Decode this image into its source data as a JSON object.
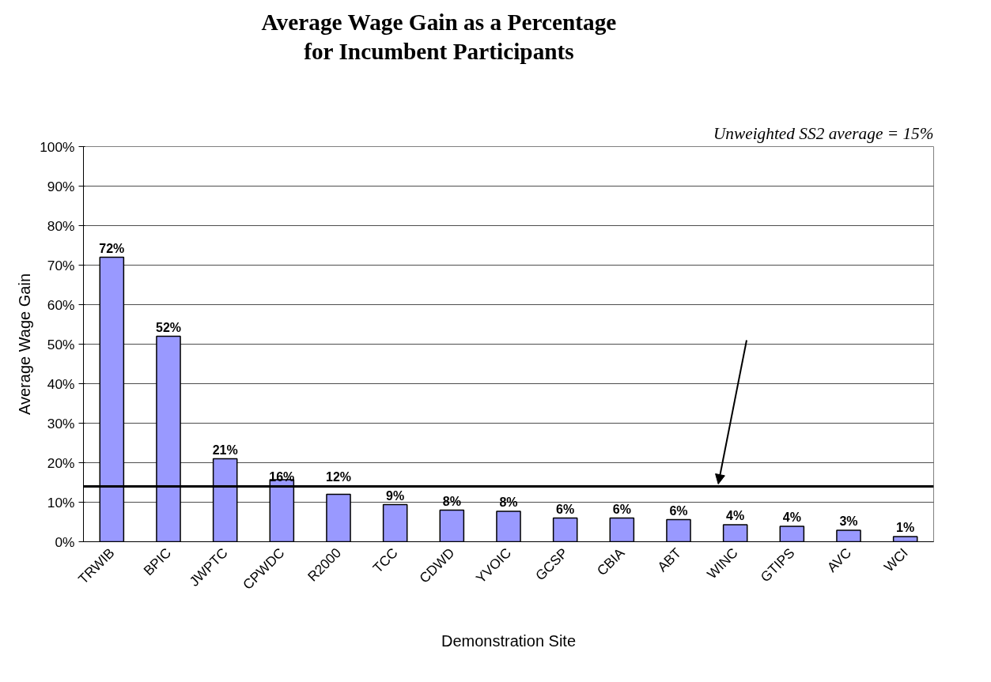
{
  "chart_data": {
    "type": "bar",
    "title": "Average Wage Gain as a Percentage\nfor Incumbent Participants",
    "xlabel": "Demonstration Site",
    "ylabel": "Average Wage Gain",
    "categories": [
      "TRWIB",
      "BPIC",
      "JWPTC",
      "CPWDC",
      "R2000",
      "TCC",
      "CDWD",
      "YVOIC",
      "GCSP",
      "CBIA",
      "ABT",
      "WINC",
      "GTIPS",
      "AVC",
      "WCI"
    ],
    "values": [
      72,
      52,
      21,
      15.7,
      12,
      9.4,
      8,
      7.7,
      6,
      6,
      5.6,
      4.3,
      3.9,
      2.9,
      1.3
    ],
    "value_labels": [
      "72%",
      "52%",
      "21%",
      "16%",
      "12%",
      "9%",
      "8%",
      "8%",
      "6%",
      "6%",
      "6%",
      "4%",
      "4%",
      "3%",
      "1%"
    ],
    "color": "#9999ff",
    "ylim": [
      0,
      100
    ],
    "yticks": [
      {
        "value": 0,
        "label": "0%"
      },
      {
        "value": 10,
        "label": "10%"
      },
      {
        "value": 20,
        "label": "20%"
      },
      {
        "value": 30,
        "label": "30%"
      },
      {
        "value": 40,
        "label": "40%"
      },
      {
        "value": 50,
        "label": "50%"
      },
      {
        "value": 60,
        "label": "60%"
      },
      {
        "value": 70,
        "label": "70%"
      },
      {
        "value": 80,
        "label": "80%"
      },
      {
        "value": 90,
        "label": "90%"
      },
      {
        "value": 100,
        "label": "100%"
      }
    ],
    "grid": "y",
    "legend": false,
    "ref_lines": [
      {
        "axis": "y",
        "value": 14,
        "color": "#000000"
      }
    ],
    "annotations": [
      "Unweighted SS2 average = 15%"
    ]
  }
}
